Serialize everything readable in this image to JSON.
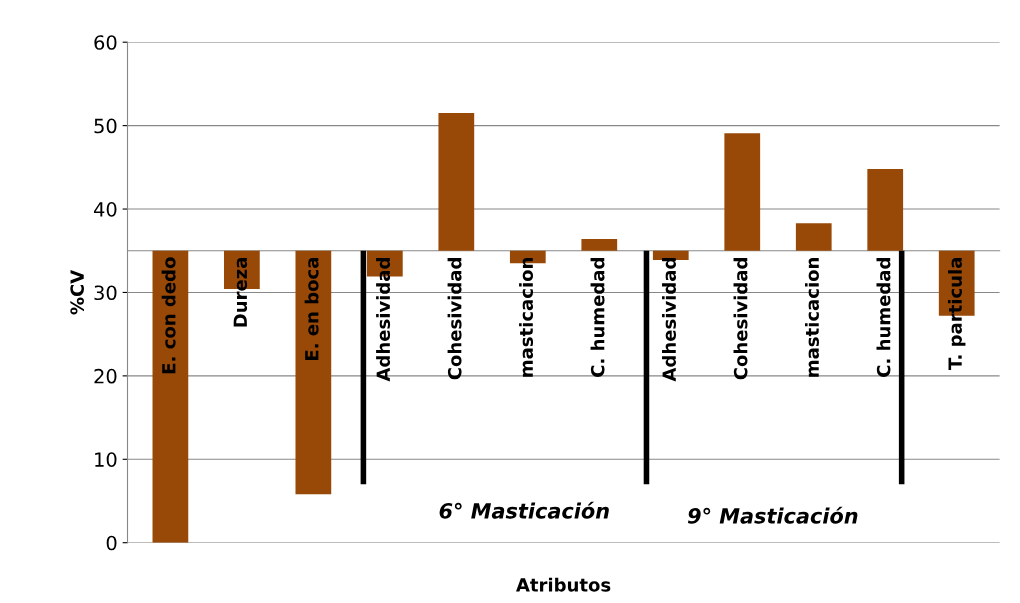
{
  "chart_data": {
    "type": "bar",
    "xlabel": "Atributos",
    "ylabel": "%CV",
    "categories": [
      "E. con dedo",
      "Dureza",
      "E. en boca",
      "Adhesividad",
      "Cohesividad",
      "masticacion",
      "C. humedad",
      "Adhesividad",
      "Cohesividad",
      "masticacion",
      "C. humedad",
      "T. particula"
    ],
    "base": [
      35,
      35,
      35,
      35,
      35,
      35,
      35,
      35,
      35,
      35,
      35,
      35
    ],
    "values": [
      -35,
      -4.6,
      -29.2,
      -3.1,
      16.5,
      -1.5,
      1.4,
      -1.1,
      14.1,
      3.3,
      9.8,
      -7.8
    ],
    "color": "#984807",
    "ylim": [
      0,
      60
    ],
    "yticks": [
      0,
      10,
      20,
      30,
      40,
      50,
      60
    ],
    "grid": "y",
    "annotations": [
      "6° Masticación",
      "9° Masticación"
    ]
  }
}
